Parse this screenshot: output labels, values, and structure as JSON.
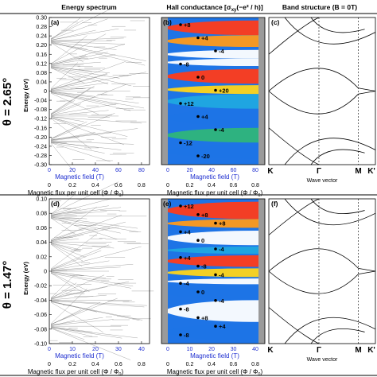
{
  "headers": {
    "energy_spectrum": "Energy spectrum",
    "hall_conductance": "Hall conductance [σ",
    "hall_sub": "xy",
    "hall_tail": "(−e² / h)]",
    "band_structure": "Band structure (B = 0T)"
  },
  "rows": [
    {
      "angle_label": "θ = 2.65°",
      "ylabel": "Energy (eV)",
      "yticks": [
        "0.30",
        "0.28",
        "0.24",
        "0.20",
        "0.16",
        "0.12",
        "0.08",
        "0.04",
        "0",
        "-0.04",
        "-0.08",
        "-0.12",
        "-0.16",
        "-0.20",
        "-0.24",
        "-0.28",
        "-0.30"
      ],
      "panels": {
        "a": "(a)",
        "b": "(b)",
        "c": "(c)"
      },
      "xticks_field": [
        "0",
        "20",
        "40",
        "60",
        "80"
      ],
      "xticks_flux": [
        "0",
        "0.2",
        "0.4",
        "0.6",
        "0.8"
      ],
      "hall_labels": [
        "+8",
        "+4",
        "-4",
        "-8",
        "0",
        "+20",
        "+12",
        "+4",
        "-4",
        "-12",
        "-20"
      ]
    },
    {
      "angle_label": "θ = 1.47°",
      "ylabel": "Energy (eV)",
      "yticks": [
        "0.10",
        "0.08",
        "0.06",
        "0.04",
        "0.02",
        "0",
        "-0.02",
        "-0.04",
        "-0.06",
        "-0.08",
        "-0.10"
      ],
      "panels": {
        "d": "(d)",
        "e": "(e)",
        "f": "(f)"
      },
      "xticks_field": [
        "0",
        "10",
        "20",
        "30",
        "40"
      ],
      "xticks_flux": [
        "0",
        "0.2",
        "0.4",
        "0.6",
        "0.8"
      ],
      "hall_labels": [
        "+12",
        "+8",
        "+8",
        "+4",
        "0",
        "-4",
        "+4",
        "-8",
        "-4",
        "-4",
        "0",
        "-4",
        "-8",
        "+8",
        "+4",
        "-8"
      ]
    }
  ],
  "xlabels": {
    "magnetic_field": "Magnetic field (T)",
    "flux": "Magnetic flux per unit cell (Φ / Φ",
    "flux_sub": "0",
    "flux_tail": ")",
    "wave_vector": "Wave vector"
  },
  "kpoints": [
    "K",
    "Γ",
    "M",
    "K'"
  ],
  "colors": {
    "spectrum": "#000000",
    "blue_axis": "#1f2fd0",
    "hall_red": "#ff3b1a",
    "hall_orange": "#ff9a1a",
    "hall_yellow": "#ffd51a",
    "hall_green": "#2fb57a",
    "hall_cyan": "#20a8e0",
    "hall_blue": "#1e74e6",
    "gray": "#9a9a9a"
  }
}
